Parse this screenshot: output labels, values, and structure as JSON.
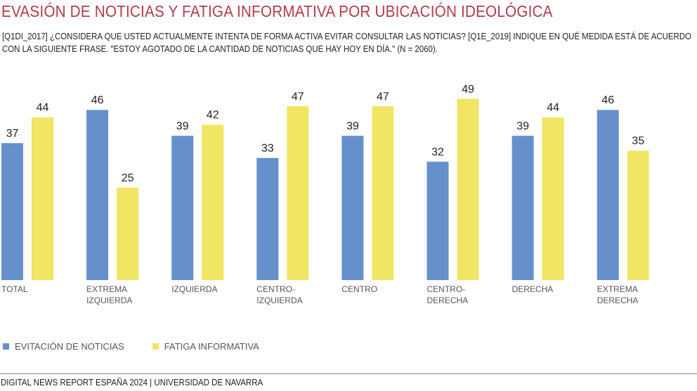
{
  "title": "EVASIÓN DE NOTICIAS Y FATIGA INFORMATIVA POR UBICACIÓN IDEOLÓGICA",
  "subtitle_line1": "[Q1DI_2017] ¿CONSIDERA QUE USTED ACTUALMENTE INTENTA DE FORMA ACTIVA EVITAR CONSULTAR LAS NOTICIAS? [Q1E_2019] INDIQUE EN QUÉ MEDIDA ESTÁ DE ACUERDO",
  "subtitle_line2": "CON LA SIGUIENTE FRASE. \"ESTOY AGOTADO DE LA CANTIDAD DE NOTICIAS QUE HAY HOY EN DÍA.\" (N = 2060).",
  "footer": "DIGITAL NEWS REPORT ESPAÑA 2024 | UNIVERSIDAD DE NAVARRA",
  "colors": {
    "evitacion": "#6590cb",
    "fatiga": "#f0e664",
    "title": "#b33a4c"
  },
  "chart_data": {
    "type": "bar",
    "title": "EVASIÓN DE NOTICIAS Y FATIGA INFORMATIVA POR UBICACIÓN IDEOLÓGICA",
    "xlabel": "",
    "ylabel": "",
    "ylim": [
      0,
      55
    ],
    "grid": false,
    "legend_position": "bottom-left",
    "categories": [
      [
        "TOTAL"
      ],
      [
        "EXTREMA",
        "IZQUIERDA"
      ],
      [
        "IZQUIERDA"
      ],
      [
        "CENTRO-",
        "IZQUIERDA"
      ],
      [
        "CENTRO"
      ],
      [
        "CENTRO-",
        "DERECHA"
      ],
      [
        "DERECHA"
      ],
      [
        "EXTREMA",
        "DERECHA"
      ]
    ],
    "series": [
      {
        "name": "EVITACIÓN DE NOTICIAS",
        "color": "#6590cb",
        "values": [
          37,
          46,
          39,
          33,
          39,
          32,
          39,
          46
        ]
      },
      {
        "name": "FATIGA INFORMATIVA",
        "color": "#f0e664",
        "values": [
          44,
          25,
          42,
          47,
          47,
          49,
          44,
          35
        ]
      }
    ]
  }
}
